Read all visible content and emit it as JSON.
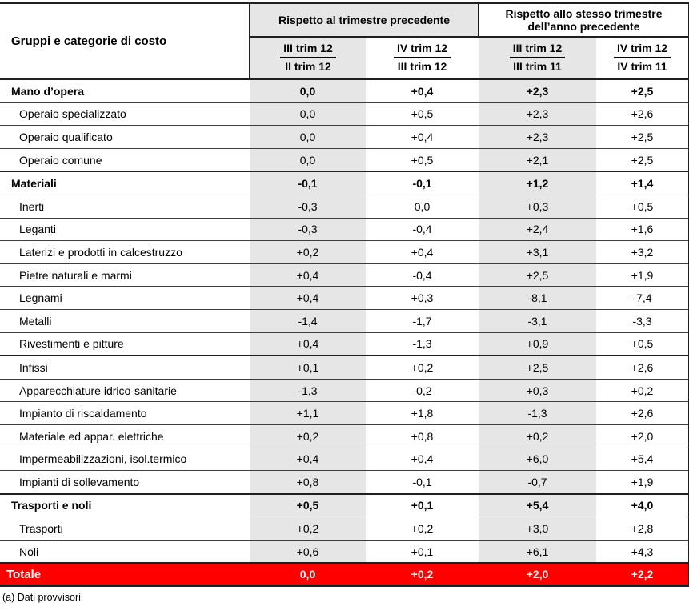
{
  "table": {
    "col_header": "Gruppi e categorie di costo",
    "group_headers": [
      {
        "label": "Rispetto al trimestre precedente"
      },
      {
        "label": "Rispetto allo stesso trimestre dell’anno precedente"
      }
    ],
    "sub_headers": [
      {
        "numerator": "III trim 12",
        "denominator": "II trim 12"
      },
      {
        "numerator": "IV trim 12",
        "denominator": "III trim 12"
      },
      {
        "numerator": "III trim 12",
        "denominator": "III trim 11"
      },
      {
        "numerator": "IV trim 12",
        "denominator": "IV trim 11"
      }
    ],
    "rows": [
      {
        "label": "Mano d’opera",
        "bold": true,
        "thick_top": true,
        "values": [
          "0,0",
          "+0,4",
          "+2,3",
          "+2,5"
        ]
      },
      {
        "label": "Operaio specializzato",
        "values": [
          "0,0",
          "+0,5",
          "+2,3",
          "+2,6"
        ]
      },
      {
        "label": "Operaio qualificato",
        "values": [
          "0,0",
          "+0,4",
          "+2,3",
          "+2,5"
        ]
      },
      {
        "label": "Operaio comune",
        "values": [
          "0,0",
          "+0,5",
          "+2,1",
          "+2,5"
        ]
      },
      {
        "label": "Materiali",
        "bold": true,
        "thick_top": true,
        "values": [
          "-0,1",
          "-0,1",
          "+1,2",
          "+1,4"
        ]
      },
      {
        "label": "Inerti",
        "values": [
          "-0,3",
          "0,0",
          "+0,3",
          "+0,5"
        ]
      },
      {
        "label": "Leganti",
        "values": [
          "-0,3",
          "-0,4",
          "+2,4",
          "+1,6"
        ]
      },
      {
        "label": "Laterizi e prodotti in calcestruzzo",
        "values": [
          "+0,2",
          "+0,4",
          "+3,1",
          "+3,2"
        ]
      },
      {
        "label": "Pietre naturali e marmi",
        "values": [
          "+0,4",
          "-0,4",
          "+2,5",
          "+1,9"
        ]
      },
      {
        "label": "Legnami",
        "values": [
          "+0,4",
          "+0,3",
          "-8,1",
          "-7,4"
        ]
      },
      {
        "label": "Metalli",
        "values": [
          "-1,4",
          "-1,7",
          "-3,1",
          "-3,3"
        ]
      },
      {
        "label": "Rivestimenti e pitture",
        "values": [
          "+0,4",
          "-1,3",
          "+0,9",
          "+0,5"
        ]
      },
      {
        "label": "Infissi",
        "thick_top": true,
        "values": [
          "+0,1",
          "+0,2",
          "+2,5",
          "+2,6"
        ]
      },
      {
        "label": "Apparecchiature idrico-sanitarie",
        "values": [
          "-1,3",
          "-0,2",
          "+0,3",
          "+0,2"
        ]
      },
      {
        "label": "Impianto di riscaldamento",
        "values": [
          "+1,1",
          "+1,8",
          "-1,3",
          "+2,6"
        ]
      },
      {
        "label": "Materiale ed appar. elettriche",
        "values": [
          "+0,2",
          "+0,8",
          "+0,2",
          "+2,0"
        ]
      },
      {
        "label": "Impermeabilizzazioni, isol.termico",
        "values": [
          "+0,4",
          "+0,4",
          "+6,0",
          "+5,4"
        ]
      },
      {
        "label": "Impianti di sollevamento",
        "values": [
          "+0,8",
          "-0,1",
          "-0,7",
          "+1,9"
        ]
      },
      {
        "label": "Trasporti e noli",
        "bold": true,
        "thick_top": true,
        "values": [
          "+0,5",
          "+0,1",
          "+5,4",
          "+4,0"
        ]
      },
      {
        "label": "Trasporti",
        "values": [
          "+0,2",
          "+0,2",
          "+3,0",
          "+2,8"
        ]
      },
      {
        "label": "Noli",
        "values": [
          "+0,6",
          "+0,1",
          "+6,1",
          "+4,3"
        ]
      }
    ],
    "total_row": {
      "label": "Totale",
      "values": [
        "0,0",
        "+0,2",
        "+2,0",
        "+2,2"
      ]
    },
    "footnote": "(a) Dati provvisori"
  },
  "colors": {
    "shaded_column": "#E6E6E6",
    "total_row_bg": "#FF0000",
    "total_row_text": "#FFFFFF",
    "border_dark": "#1F1F1F",
    "border_light": "#3E3E3E"
  }
}
